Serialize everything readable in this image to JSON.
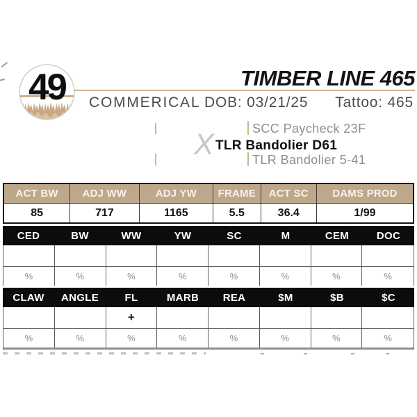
{
  "lot": {
    "number": "49"
  },
  "header": {
    "title": "TIMBER LINE 465",
    "breed_label": "COMMERICAL",
    "dob_label": "DOB: 03/21/25",
    "tattoo_label": "Tattoo: 465"
  },
  "pedigree": {
    "cross_symbol": "X",
    "sire": "TLR Bandolier D61",
    "sire_sire": "SCC Paycheck 23F",
    "sire_dam": "TLR Bandolier 5-41"
  },
  "tables": {
    "performance": {
      "headers": [
        "ACT BW",
        "ADJ WW",
        "ADJ YW",
        "FRAME",
        "ACT SC",
        "DAMS PROD"
      ],
      "values": [
        "85",
        "717",
        "1165",
        "5.5",
        "36.4",
        "1/99"
      ]
    },
    "epd_growth": {
      "headers": [
        "CED",
        "BW",
        "WW",
        "YW",
        "SC",
        "M",
        "CEM",
        "DOC"
      ],
      "values": [
        "",
        "",
        "",
        "",
        "",
        "",
        "",
        ""
      ],
      "percents": [
        "%",
        "%",
        "%",
        "%",
        "%",
        "%",
        "%",
        "%"
      ]
    },
    "epd_carcass": {
      "headers": [
        "CLAW",
        "ANGLE",
        "FL",
        "MARB",
        "REA",
        "$M",
        "$B",
        "$C"
      ],
      "values": [
        "",
        "",
        "+",
        "",
        "",
        "",
        "",
        ""
      ],
      "percents": [
        "%",
        "%",
        "%",
        "%",
        "%",
        "%",
        "%",
        "%"
      ]
    }
  },
  "colors": {
    "tan_header": "#bda88c",
    "tan_rule": "#cdb593",
    "black_band": "#0c0c0c",
    "gray_text": "#4b4b4b",
    "pedigree_gray": "#8f8f8f",
    "percent_gray": "#8c8c8c"
  }
}
